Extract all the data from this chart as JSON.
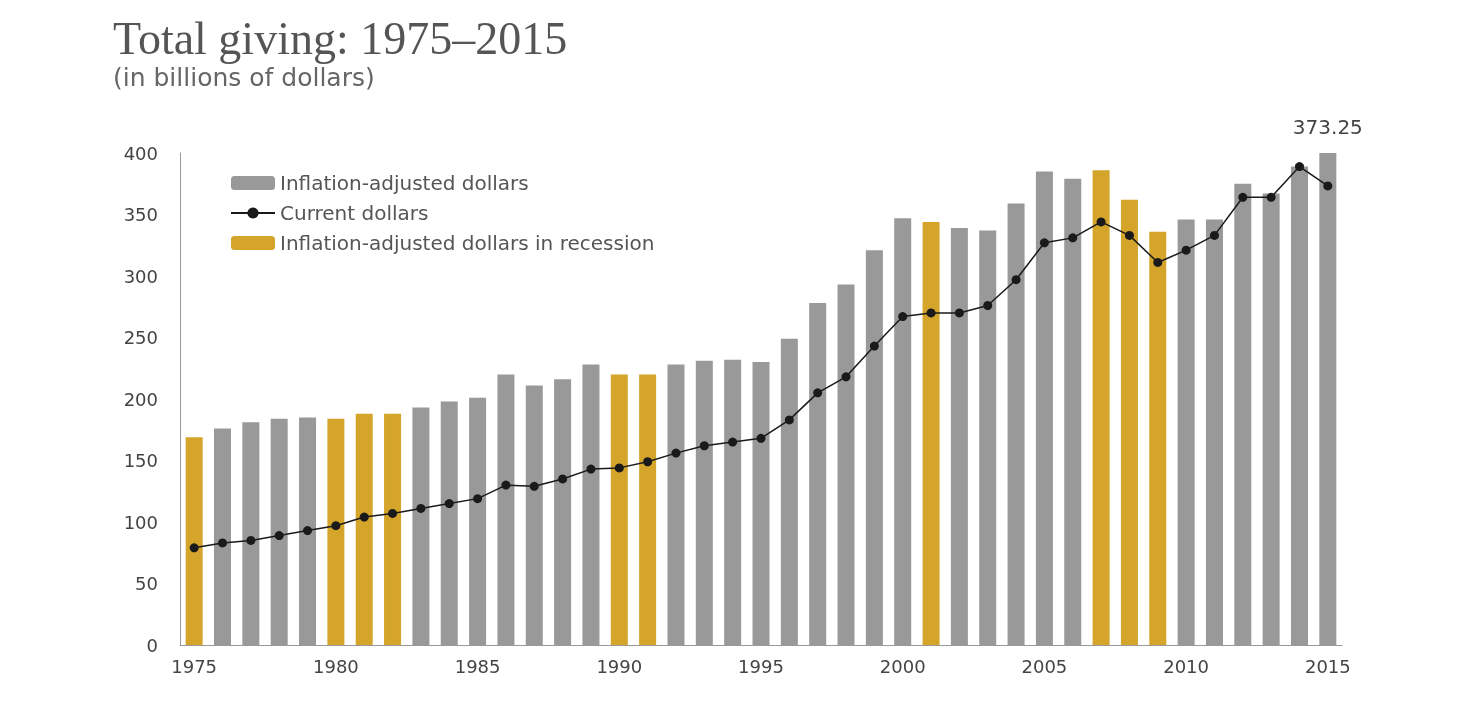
{
  "chart_data": {
    "type": "bar",
    "title": "Total giving: 1975–2015",
    "subtitle": "(in billions of dollars)",
    "categories": [
      "1975",
      null,
      null,
      null,
      null,
      "1980",
      null,
      null,
      null,
      null,
      "1985",
      null,
      null,
      null,
      null,
      "1990",
      null,
      null,
      null,
      null,
      "1995",
      null,
      null,
      null,
      null,
      "2000",
      null,
      null,
      null,
      null,
      "2005",
      null,
      null,
      null,
      null,
      "2010",
      null,
      null,
      null,
      null,
      "2015"
    ],
    "series": [
      {
        "name": "Inflation-adjusted dollars",
        "color": "#999999",
        "values": [
          null,
          176,
          181,
          184,
          185,
          null,
          null,
          null,
          193,
          198,
          201,
          220,
          211,
          216,
          228,
          null,
          null,
          228,
          231,
          232,
          230,
          249,
          278,
          293,
          321,
          347,
          null,
          339,
          337,
          359,
          385,
          379,
          null,
          null,
          null,
          346,
          346,
          375,
          367,
          389,
          400
        ]
      },
      {
        "name": "Current dollars",
        "type": "line",
        "color": "#1a1a1a",
        "marker": "circle",
        "values": [
          79,
          83,
          85,
          89,
          93,
          97,
          104,
          107,
          111,
          115,
          119,
          130,
          129,
          135,
          143,
          144,
          149,
          156,
          162,
          165,
          168,
          183,
          205,
          218,
          243,
          267,
          270,
          270,
          276,
          297,
          327,
          331,
          344,
          333,
          311,
          321,
          333,
          364,
          364,
          389,
          373.25
        ],
        "value_labels": [
          null,
          null,
          null,
          null,
          null,
          null,
          null,
          null,
          null,
          null,
          null,
          null,
          null,
          null,
          null,
          null,
          null,
          null,
          null,
          null,
          null,
          null,
          null,
          null,
          null,
          null,
          null,
          null,
          null,
          null,
          null,
          null,
          null,
          null,
          null,
          null,
          null,
          null,
          null,
          null,
          "373.25"
        ]
      },
      {
        "name": "Inflation-adjusted dollars in recession",
        "color": "#d4a52a",
        "values": [
          169,
          null,
          null,
          null,
          null,
          184,
          188,
          188,
          null,
          null,
          null,
          null,
          null,
          null,
          null,
          220,
          220,
          null,
          null,
          null,
          null,
          null,
          null,
          null,
          null,
          null,
          344,
          null,
          null,
          null,
          null,
          null,
          386,
          362,
          336,
          null,
          null,
          null,
          null,
          null,
          null
        ]
      }
    ],
    "ylim": [
      0,
      400
    ],
    "yticks": [
      0,
      50,
      100,
      150,
      200,
      250,
      300,
      350,
      400
    ],
    "grid": false,
    "legend": "top left"
  }
}
